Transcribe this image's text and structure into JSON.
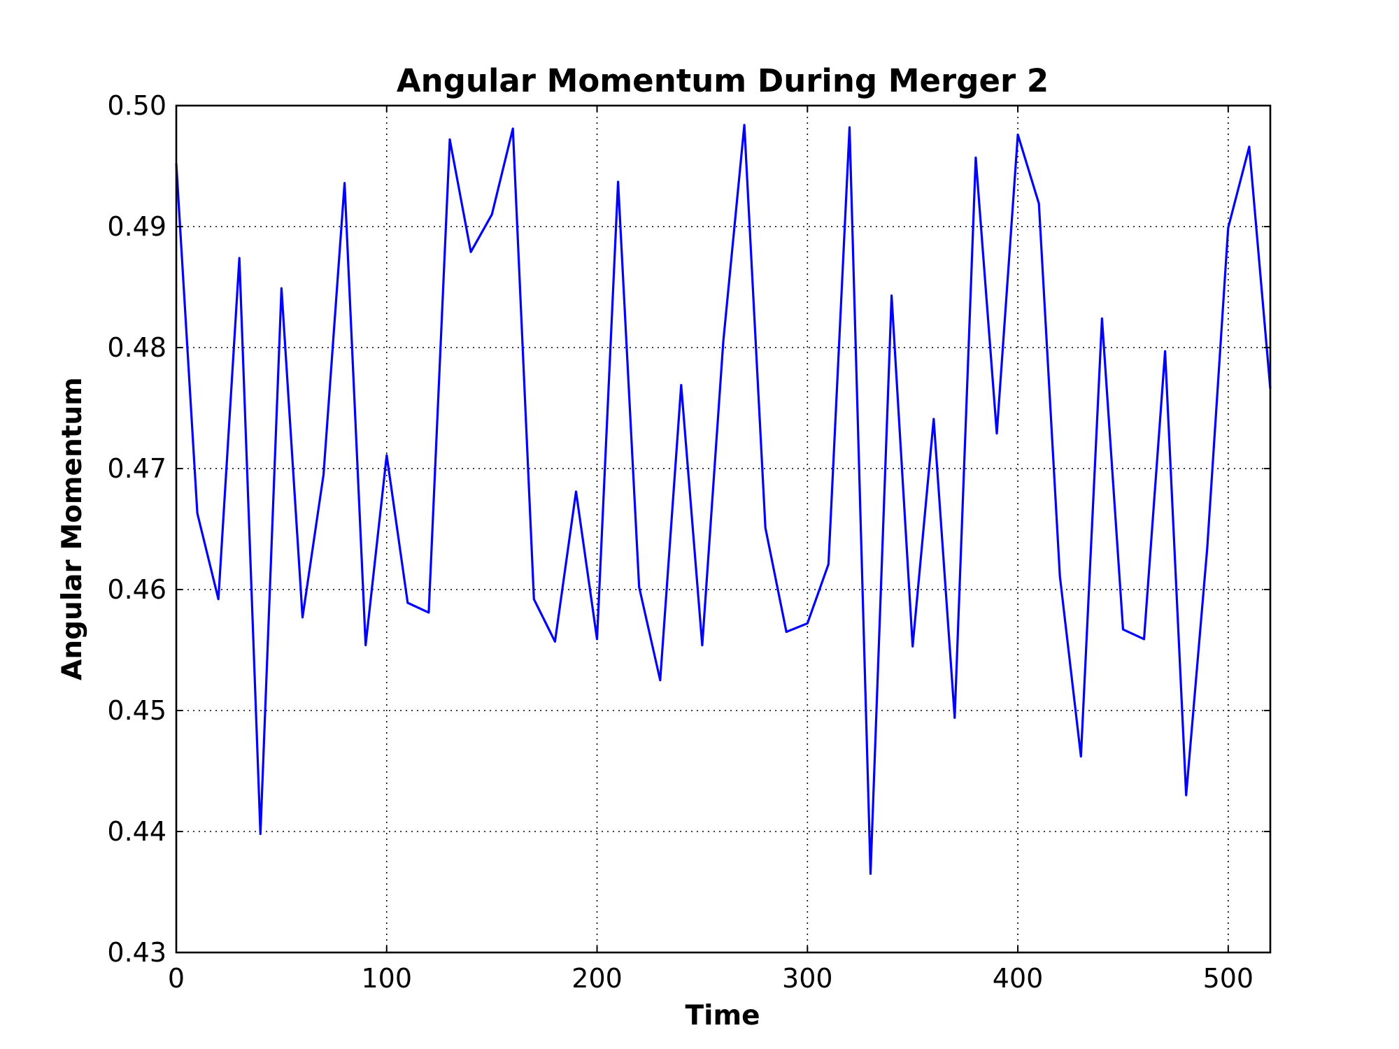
{
  "chart_data": {
    "type": "line",
    "title": "Angular Momentum During Merger 2",
    "xlabel": "Time",
    "ylabel": "Angular Momentum",
    "xlim": [
      0,
      520
    ],
    "ylim": [
      0.43,
      0.5
    ],
    "xticks": [
      0,
      100,
      200,
      300,
      400,
      500
    ],
    "xtick_labels": [
      "0",
      "100",
      "200",
      "300",
      "400",
      "500"
    ],
    "yticks": [
      0.43,
      0.44,
      0.45,
      0.46,
      0.47,
      0.48,
      0.49,
      0.5
    ],
    "ytick_labels": [
      "0.43",
      "0.44",
      "0.45",
      "0.46",
      "0.47",
      "0.48",
      "0.49",
      "0.50"
    ],
    "grid": true,
    "series_color": "#0000ff",
    "series": [
      {
        "x": [
          0,
          10,
          20,
          30,
          40,
          50,
          60,
          70,
          80,
          90,
          100,
          110,
          120,
          130,
          140,
          150,
          160,
          170,
          180,
          190,
          200,
          210,
          220,
          230,
          240,
          250,
          260,
          270,
          280,
          290,
          300,
          310,
          320,
          330,
          340,
          350,
          360,
          370,
          380,
          390,
          400,
          410,
          420,
          430,
          440,
          450,
          460,
          470,
          480,
          490,
          500,
          510,
          520
        ],
        "values": [
          0.4952,
          0.4663,
          0.4592,
          0.4874,
          0.4398,
          0.4849,
          0.4577,
          0.4695,
          0.4936,
          0.4554,
          0.4711,
          0.4589,
          0.4581,
          0.4972,
          0.4879,
          0.491,
          0.4981,
          0.4592,
          0.4557,
          0.4681,
          0.4559,
          0.4937,
          0.4602,
          0.4525,
          0.4769,
          0.4554,
          0.4805,
          0.4984,
          0.4651,
          0.4565,
          0.4572,
          0.4621,
          0.4982,
          0.4365,
          0.4843,
          0.4553,
          0.4741,
          0.4494,
          0.4957,
          0.4729,
          0.4976,
          0.4919,
          0.4611,
          0.4462,
          0.4824,
          0.4567,
          0.4559,
          0.4797,
          0.443,
          0.4634,
          0.4899,
          0.4966,
          0.4766
        ]
      }
    ]
  }
}
